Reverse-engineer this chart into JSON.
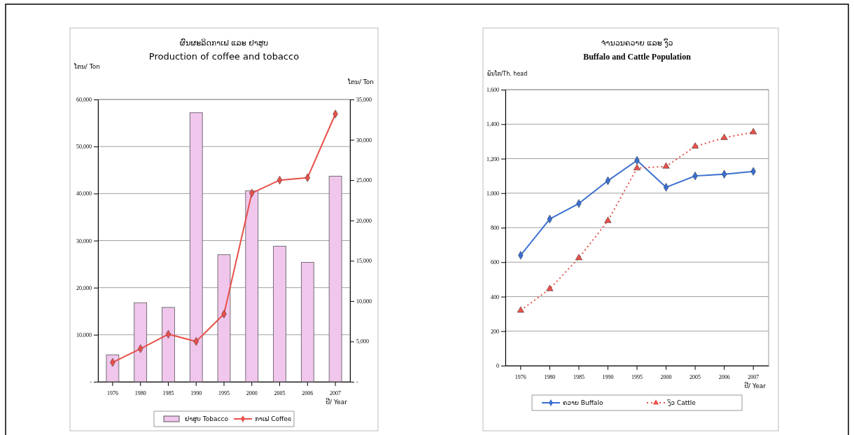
{
  "chart_data": [
    {
      "type": "bar",
      "title": "ຜົນຜະລິດກາເຟ ແລະ ຢາສູບ",
      "subtitle": "Production of coffee and tobacco",
      "xlabel": "ປີ/ Year",
      "ylabel": "ໂຕນ/ Ton",
      "y2label": "ໂຕນ/ Ton",
      "categories": [
        "1976",
        "1980",
        "1985",
        "1990",
        "1995",
        "2000",
        "2005",
        "2006",
        "2007"
      ],
      "series": [
        {
          "name": "ຢາສູບ Tobacco",
          "color": "#f0c6ec",
          "values": [
            5700,
            16800,
            15800,
            57200,
            27000,
            40600,
            28800,
            25400,
            43700
          ]
        },
        {
          "name": "ກາເຟ Coffee",
          "type": "line",
          "axis": "y2",
          "color": "#e8504a",
          "marker": "diamond",
          "values": [
            2400,
            4100,
            5900,
            5000,
            8400,
            23400,
            25000,
            25300,
            33200
          ]
        }
      ],
      "ylim": [
        0,
        60000
      ],
      "yticks": [
        {
          "value": 0,
          "label": "-"
        },
        {
          "value": 10000,
          "label": "10,000"
        },
        {
          "value": 20000,
          "label": "20,000"
        },
        {
          "value": 30000,
          "label": "30,000"
        },
        {
          "value": 40000,
          "label": "40,000"
        },
        {
          "value": 50000,
          "label": "50,000"
        },
        {
          "value": 60000,
          "label": "60,000"
        }
      ],
      "y2lim": [
        0,
        35000
      ],
      "y2ticks": [
        {
          "value": 0,
          "label": "-"
        },
        {
          "value": 5000,
          "label": "5,000"
        },
        {
          "value": 10000,
          "label": "10,000"
        },
        {
          "value": 15000,
          "label": "15,000"
        },
        {
          "value": 20000,
          "label": "20,000"
        },
        {
          "value": 25000,
          "label": "25,000"
        },
        {
          "value": 30000,
          "label": "30,000"
        },
        {
          "value": 35000,
          "label": "35,000"
        }
      ],
      "grid": "y",
      "legend": "bottom"
    },
    {
      "type": "line",
      "title": "ຈຳນວນຄວາຍ ແລະ ງົວ",
      "subtitle": "Buffalo and Cattle Population",
      "xlabel": "ປີ/ Year",
      "ylabel": "ພັນໂຕ/Th. head",
      "categories": [
        "1976",
        "1980",
        "1985",
        "1990",
        "1995",
        "2000",
        "2005",
        "2006",
        "2007"
      ],
      "series": [
        {
          "name": "ຄວາຍ Buffalo",
          "color": "#3a6fd0",
          "marker": "diamond",
          "line_style": "solid",
          "values": [
            640,
            850,
            940,
            1072,
            1190,
            1034,
            1100,
            1110,
            1126
          ]
        },
        {
          "name": "ງົວ Cattle",
          "color": "#e8504a",
          "marker": "triangle",
          "line_style": "dotted",
          "values": [
            320,
            445,
            624,
            840,
            1145,
            1155,
            1271,
            1321,
            1354
          ]
        }
      ],
      "ylim": [
        0,
        1600
      ],
      "yticks": [
        0,
        200,
        400,
        600,
        800,
        {
          "value": 1000,
          "label": "1,000"
        },
        {
          "value": 1200,
          "label": "1,200"
        },
        {
          "value": 1400,
          "label": "1,400"
        },
        {
          "value": 1600,
          "label": "1,600"
        }
      ],
      "grid": "y",
      "legend": "bottom"
    }
  ]
}
